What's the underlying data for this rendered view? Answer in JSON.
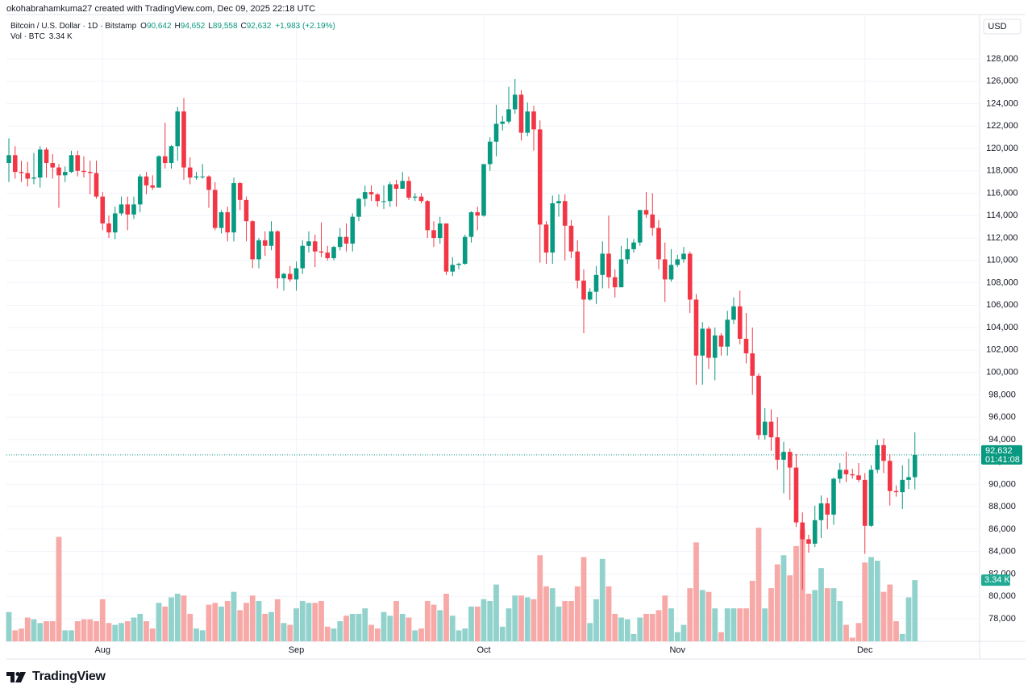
{
  "header": {
    "credit": "okohabrahamkuma27 created with TradingView.com, Dec 09, 2025 22:18 UTC"
  },
  "legend": {
    "symbol": "Bitcoin / U.S. Dollar · 1D · Bitstamp",
    "items": [
      {
        "key": "O",
        "value": "90,642"
      },
      {
        "key": "H",
        "value": "94,652"
      },
      {
        "key": "L",
        "value": "89,558"
      },
      {
        "key": "C",
        "value": "92,632"
      }
    ],
    "change": "+1,983 (+2.19%)"
  },
  "footer": {
    "logo": "TradingView"
  },
  "chart_data": {
    "type": "candlestick",
    "currency": "USD",
    "up_color": "#089981",
    "down_color": "#f23645",
    "volume_up_color": "#92d2cc",
    "volume_down_color": "#f7a9a7",
    "grid": true,
    "last_price_label": "92,632",
    "countdown": "01:41:08",
    "categories": [
      null,
      null,
      null,
      null,
      null,
      null,
      null,
      null,
      null,
      null,
      null,
      null,
      null,
      null,
      null,
      "Aug",
      null,
      null,
      null,
      null,
      null,
      null,
      null,
      null,
      null,
      null,
      null,
      null,
      null,
      null,
      null,
      null,
      null,
      null,
      null,
      null,
      null,
      null,
      null,
      null,
      null,
      null,
      null,
      null,
      null,
      null,
      "Sep",
      null,
      null,
      null,
      null,
      null,
      null,
      null,
      null,
      null,
      null,
      null,
      null,
      null,
      null,
      null,
      null,
      null,
      null,
      null,
      null,
      null,
      null,
      null,
      null,
      null,
      null,
      null,
      null,
      null,
      "Oct",
      null,
      null,
      null,
      null,
      null,
      null,
      null,
      null,
      null,
      null,
      null,
      null,
      null,
      null,
      null,
      null,
      null,
      null,
      null,
      null,
      null,
      null,
      null,
      null,
      null,
      null,
      null,
      null,
      null,
      null,
      "Nov",
      null,
      null,
      null,
      null,
      null,
      null,
      null,
      null,
      null,
      null,
      null,
      null,
      null,
      null,
      null,
      null,
      null,
      null,
      null,
      null,
      null,
      null,
      null,
      null,
      null,
      null,
      null,
      null,
      null,
      "Dec",
      null,
      null,
      null,
      null,
      null,
      null,
      null,
      null
    ],
    "open": [
      118700,
      119400,
      117900,
      117800,
      117300,
      117400,
      119900,
      118700,
      118300,
      117600,
      117900,
      119400,
      118000,
      117900,
      117800,
      115700,
      113300,
      112500,
      114200,
      115000,
      114100,
      115000,
      117500,
      116700,
      116500,
      119300,
      118700,
      120200,
      123300,
      118300,
      117400,
      117500,
      117500,
      116300,
      112900,
      114300,
      112500,
      116900,
      115400,
      113500,
      110100,
      111800,
      111300,
      112600,
      108400,
      108800,
      108300,
      109300,
      111300,
      111700,
      110800,
      110700,
      110200,
      111200,
      112100,
      111500,
      113900,
      115500,
      116100,
      115900,
      115300,
      115300,
      116800,
      116400,
      117100,
      115600,
      115700,
      115300,
      112700,
      112000,
      113300,
      109000,
      109600,
      109700,
      112100,
      114300,
      114000,
      118600,
      120600,
      122200,
      122400,
      123500,
      124800,
      121400,
      123300,
      121700,
      113200,
      110700,
      115100,
      115300,
      113100,
      110800,
      108200,
      106500,
      107200,
      108700,
      110600,
      108500,
      107600,
      110100,
      111000,
      111600,
      114500,
      114100,
      112900,
      110100,
      108300,
      109600,
      110100,
      110600,
      106500,
      101500,
      103900,
      101300,
      103300,
      102300,
      104700,
      105900,
      103000,
      101700,
      99700,
      94400,
      95600,
      94200,
      92200,
      92900,
      91500,
      86600,
      85100,
      84700,
      86800,
      88300,
      87300,
      90500,
      91300,
      90900,
      90800,
      90400,
      86300,
      91300,
      93500,
      92100,
      89400,
      89300,
      90400,
      90642
    ],
    "high": [
      120900,
      120200,
      118900,
      118800,
      119600,
      120200,
      120100,
      119500,
      118600,
      118400,
      119800,
      119800,
      119300,
      118900,
      118900,
      116100,
      114000,
      114800,
      115700,
      115700,
      115700,
      117700,
      117900,
      117600,
      119400,
      122300,
      120300,
      123700,
      124500,
      119200,
      117900,
      118600,
      117600,
      117000,
      114500,
      114800,
      117400,
      117000,
      115700,
      113600,
      112000,
      112600,
      113500,
      112700,
      108900,
      109500,
      109900,
      111800,
      112600,
      112300,
      113400,
      111300,
      111300,
      112900,
      113300,
      114200,
      115600,
      116700,
      116700,
      116000,
      116700,
      117000,
      117200,
      117900,
      117500,
      116000,
      116000,
      115400,
      113500,
      113900,
      113300,
      110300,
      109800,
      112300,
      114400,
      114800,
      118600,
      121000,
      123900,
      122900,
      125500,
      126200,
      125200,
      124100,
      123800,
      122500,
      113500,
      115800,
      115900,
      115900,
      113600,
      111800,
      109200,
      107500,
      109500,
      111700,
      114000,
      109200,
      111300,
      112000,
      111900,
      114500,
      116100,
      116000,
      113600,
      111600,
      111000,
      110500,
      111200,
      110800,
      107000,
      104500,
      104100,
      104000,
      103500,
      105500,
      106700,
      107300,
      105300,
      104000,
      99900,
      96800,
      96700,
      96000,
      93800,
      93200,
      92700,
      87500,
      85500,
      88100,
      89000,
      88800,
      90600,
      91900,
      92900,
      91400,
      91900,
      91000,
      91700,
      94000,
      94100,
      92700,
      89900,
      91700,
      92300,
      94652
    ],
    "low": [
      117000,
      117300,
      117000,
      116600,
      116800,
      116500,
      117400,
      117300,
      114700,
      117000,
      117800,
      117500,
      117400,
      115900,
      115500,
      112700,
      112000,
      111900,
      114000,
      112700,
      113700,
      114300,
      115900,
      116300,
      116500,
      118200,
      118200,
      118900,
      117200,
      116800,
      117200,
      117300,
      114700,
      112700,
      112400,
      111700,
      111700,
      114500,
      111700,
      109300,
      109300,
      110400,
      110900,
      107500,
      107300,
      108100,
      107300,
      108800,
      110700,
      109400,
      110300,
      110000,
      110000,
      110900,
      110800,
      110800,
      113500,
      114800,
      115300,
      114800,
      114600,
      114800,
      114800,
      116400,
      115400,
      115300,
      115100,
      112000,
      111200,
      111500,
      108700,
      108600,
      109200,
      109600,
      111600,
      112700,
      113900,
      118000,
      119300,
      121600,
      122200,
      123100,
      120700,
      121100,
      119800,
      109800,
      109700,
      109700,
      113900,
      110000,
      110200,
      107500,
      103500,
      106400,
      106100,
      107500,
      107500,
      106700,
      107600,
      109700,
      110700,
      111300,
      113800,
      112200,
      109200,
      106300,
      108100,
      109400,
      109800,
      105300,
      98900,
      98900,
      100300,
      99300,
      101500,
      101500,
      104300,
      102500,
      100800,
      98000,
      94000,
      94000,
      93000,
      91300,
      89200,
      88600,
      86200,
      80600,
      83900,
      84400,
      85200,
      86000,
      86400,
      90100,
      90200,
      90500,
      90200,
      83800,
      86200,
      91000,
      91000,
      88100,
      88900,
      87800,
      89600,
      89558
    ],
    "close": [
      119400,
      117900,
      117800,
      117300,
      117400,
      119900,
      118700,
      118300,
      117600,
      117900,
      119400,
      118000,
      117900,
      117800,
      115700,
      113300,
      112500,
      114200,
      115000,
      114100,
      115000,
      117500,
      116700,
      116500,
      119300,
      118700,
      120200,
      123300,
      118300,
      117400,
      117500,
      117500,
      116300,
      112900,
      114300,
      112500,
      116900,
      115400,
      113500,
      110100,
      111800,
      111300,
      112600,
      108400,
      108800,
      108300,
      109300,
      111300,
      111700,
      110800,
      110700,
      110200,
      111200,
      112100,
      111500,
      113900,
      115500,
      116100,
      115900,
      115300,
      115300,
      116800,
      116400,
      117100,
      115600,
      115700,
      115300,
      112700,
      112000,
      113300,
      109000,
      109600,
      109700,
      112100,
      114300,
      114000,
      118600,
      120600,
      122200,
      122400,
      123500,
      124800,
      121400,
      123300,
      121700,
      113200,
      110700,
      115100,
      115300,
      113100,
      110800,
      108200,
      106500,
      107200,
      108700,
      110600,
      108500,
      107600,
      110100,
      111000,
      111600,
      114500,
      114100,
      112900,
      110100,
      108300,
      109600,
      110100,
      110600,
      106500,
      101500,
      103900,
      101300,
      103300,
      102300,
      104700,
      105900,
      103000,
      101700,
      99700,
      94400,
      95600,
      94200,
      92200,
      92900,
      91500,
      86600,
      85100,
      84700,
      86800,
      88300,
      87300,
      90500,
      91300,
      90900,
      90800,
      90400,
      86300,
      91300,
      93500,
      92100,
      89400,
      89300,
      90400,
      90642,
      92632
    ],
    "volume": {
      "name": "Vol · BTC",
      "last_label": "3.34 K",
      "ylim": [
        0,
        14000
      ],
      "values": [
        1600,
        600,
        700,
        1300,
        1200,
        1000,
        1100,
        1100,
        5700,
        600,
        600,
        1100,
        1200,
        1200,
        1100,
        2300,
        1000,
        900,
        1000,
        1100,
        1300,
        1500,
        1100,
        700,
        2100,
        1900,
        2400,
        2600,
        2500,
        1500,
        700,
        600,
        2000,
        2100,
        1900,
        2200,
        2700,
        1700,
        2100,
        2500,
        2200,
        1500,
        1600,
        2300,
        1000,
        900,
        1800,
        2200,
        2100,
        2100,
        2200,
        800,
        700,
        1100,
        1400,
        1500,
        1500,
        1800,
        900,
        700,
        1600,
        1400,
        2200,
        1500,
        1300,
        600,
        700,
        2200,
        2000,
        1700,
        2600,
        1400,
        600,
        700,
        1900,
        1900,
        2300,
        2200,
        3100,
        800,
        1800,
        2500,
        2500,
        2400,
        2300,
        4700,
        3000,
        2900,
        1900,
        2200,
        2200,
        3000,
        4600,
        1000,
        2300,
        4500,
        3000,
        1500,
        1300,
        1200,
        400,
        1300,
        1500,
        1500,
        1700,
        2500,
        1800,
        500,
        900,
        2900,
        5400,
        2800,
        2700,
        1800,
        500,
        1800,
        1800,
        1800,
        1800,
        3300,
        6200,
        1800,
        2900,
        4200,
        4700,
        3600,
        5200,
        6100,
        2600,
        2800,
        4000,
        2900,
        2900,
        2200,
        900,
        200,
        1000,
        4300,
        4600,
        4400,
        2700,
        3100,
        1100,
        400,
        2400,
        3340
      ]
    },
    "ylim": [
      75980,
      131960
    ],
    "yticks": [
      {
        "value": 78000,
        "label": "78,000"
      },
      {
        "value": 80000,
        "label": "80,000"
      },
      {
        "value": 82000,
        "label": "82,000"
      },
      {
        "value": 84000,
        "label": "84,000"
      },
      {
        "value": 86000,
        "label": "86,000"
      },
      {
        "value": 88000,
        "label": "88,000"
      },
      {
        "value": 90000,
        "label": "90,000"
      },
      {
        "value": 92000,
        "label": "92,000"
      },
      {
        "value": 94000,
        "label": "94,000"
      },
      {
        "value": 96000,
        "label": "96,000"
      },
      {
        "value": 98000,
        "label": "98,000"
      },
      {
        "value": 100000,
        "label": "100,000"
      },
      {
        "value": 102000,
        "label": "102,000"
      },
      {
        "value": 104000,
        "label": "104,000"
      },
      {
        "value": 106000,
        "label": "106,000"
      },
      {
        "value": 108000,
        "label": "108,000"
      },
      {
        "value": 110000,
        "label": "110,000"
      },
      {
        "value": 112000,
        "label": "112,000"
      },
      {
        "value": 114000,
        "label": "114,000"
      },
      {
        "value": 116000,
        "label": "116,000"
      },
      {
        "value": 118000,
        "label": "118,000"
      },
      {
        "value": 120000,
        "label": "120,000"
      },
      {
        "value": 122000,
        "label": "122,000"
      },
      {
        "value": 124000,
        "label": "124,000"
      },
      {
        "value": 126000,
        "label": "126,000"
      },
      {
        "value": 128000,
        "label": "128,000"
      }
    ]
  }
}
